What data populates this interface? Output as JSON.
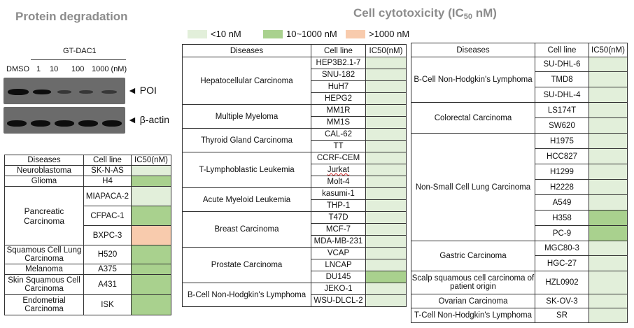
{
  "left_title": "Protein degradation",
  "right_title_main": "Cell cytotoxicity (IC",
  "right_title_sub": "50",
  "right_title_end": " nM)",
  "legend": [
    {
      "label": "<10 nM",
      "color": "#e2efda"
    },
    {
      "label": "10~1000 nM",
      "color": "#a9d18e"
    },
    {
      "label": ">1000 nM",
      "color": "#f8cbad"
    }
  ],
  "western_blot": {
    "drug": "GT-DAC1",
    "lanes": [
      "DMSO",
      "1",
      "10",
      "100",
      "1000 (nM)"
    ],
    "band_labels": [
      "◄ POI",
      "◄ β-actin"
    ]
  },
  "table_headers": {
    "diseases": "Diseases",
    "cell_line": "Cell line",
    "ic50": "IC50(nM)"
  },
  "tables": {
    "small": {
      "groups": [
        {
          "disease": "Neuroblastoma",
          "rows": [
            {
              "cell": "SK-N-AS",
              "level": "<10"
            }
          ]
        },
        {
          "disease": "Glioma",
          "rows": [
            {
              "cell": "H4",
              "level": "10~1000"
            }
          ]
        },
        {
          "disease": "Pancreatic Carcinoma",
          "rows": [
            {
              "cell": "MIAPACA-2",
              "level": "<10"
            },
            {
              "cell": "CFPAC-1",
              "level": "10~1000"
            },
            {
              "cell": "BXPC-3",
              "level": ">1000"
            }
          ]
        },
        {
          "disease": "Squamous Cell Lung Carcinoma",
          "rows": [
            {
              "cell": "H520",
              "level": "10~1000"
            }
          ]
        },
        {
          "disease": "Melanoma",
          "rows": [
            {
              "cell": "A375",
              "level": "10~1000"
            }
          ]
        },
        {
          "disease": "Skin Squamous Cell Carcinoma",
          "rows": [
            {
              "cell": "A431",
              "level": "10~1000"
            }
          ]
        },
        {
          "disease": "Endometrial Carcinoma",
          "rows": [
            {
              "cell": "ISK",
              "level": "10~1000"
            }
          ]
        }
      ]
    },
    "middle": {
      "groups": [
        {
          "disease": "Hepatocellular Carcinoma",
          "rows": [
            {
              "cell": "HEP3B2.1-7",
              "level": "<10"
            },
            {
              "cell": "SNU-182",
              "level": "<10"
            },
            {
              "cell": "HuH7",
              "level": "<10"
            },
            {
              "cell": "HEPG2",
              "level": "<10"
            }
          ]
        },
        {
          "disease": "Multiple Myeloma",
          "rows": [
            {
              "cell": "MM1R",
              "level": "<10"
            },
            {
              "cell": "MM1S",
              "level": "<10"
            }
          ]
        },
        {
          "disease": "Thyroid Gland Carcinoma",
          "rows": [
            {
              "cell": "CAL-62",
              "level": "<10"
            },
            {
              "cell": "TT",
              "level": "<10"
            }
          ]
        },
        {
          "disease": "T-Lymphoblastic Leukemia",
          "rows": [
            {
              "cell": "CCRF-CEM",
              "level": "<10"
            },
            {
              "cell": "Jurkat",
              "level": "<10"
            },
            {
              "cell": "Molt-4",
              "level": "<10"
            }
          ]
        },
        {
          "disease": "Acute Myeloid Leukemia",
          "rows": [
            {
              "cell": "kasumi-1",
              "level": "<10"
            },
            {
              "cell": "THP-1",
              "level": "<10"
            }
          ]
        },
        {
          "disease": "Breast Carcinoma",
          "rows": [
            {
              "cell": "T47D",
              "level": "<10"
            },
            {
              "cell": "MCF-7",
              "level": "<10"
            },
            {
              "cell": "MDA-MB-231",
              "level": "<10"
            }
          ]
        },
        {
          "disease": "Prostate Carcinoma",
          "rows": [
            {
              "cell": "VCAP",
              "level": "<10"
            },
            {
              "cell": "LNCAP",
              "level": "<10"
            },
            {
              "cell": "DU145",
              "level": "10~1000"
            }
          ]
        },
        {
          "disease": "B-Cell Non-Hodgkin's Lymphoma",
          "rows": [
            {
              "cell": "JEKO-1",
              "level": "<10"
            },
            {
              "cell": "WSU-DLCL-2",
              "level": "<10"
            }
          ]
        }
      ]
    },
    "right": {
      "groups": [
        {
          "disease": "B-Cell Non-Hodgkin's Lymphoma",
          "rows": [
            {
              "cell": "SU-DHL-6",
              "level": "<10"
            },
            {
              "cell": "TMD8",
              "level": "<10"
            },
            {
              "cell": "SU-DHL-4",
              "level": "<10"
            }
          ]
        },
        {
          "disease": "Colorectal Carcinoma",
          "rows": [
            {
              "cell": "LS174T",
              "level": "<10"
            },
            {
              "cell": "SW620",
              "level": "<10"
            }
          ]
        },
        {
          "disease": "Non-Small Cell Lung Carcinoma",
          "rows": [
            {
              "cell": "H1975",
              "level": "<10"
            },
            {
              "cell": "HCC827",
              "level": "<10"
            },
            {
              "cell": "H1299",
              "level": "<10"
            },
            {
              "cell": "H2228",
              "level": "<10"
            },
            {
              "cell": "A549",
              "level": "<10"
            },
            {
              "cell": "H358",
              "level": "10~1000"
            },
            {
              "cell": "PC-9",
              "level": "10~1000"
            }
          ]
        },
        {
          "disease": "Gastric Carcinoma",
          "rows": [
            {
              "cell": "MGC80-3",
              "level": "<10"
            },
            {
              "cell": "HGC-27",
              "level": "<10"
            }
          ]
        },
        {
          "disease": "Scalp squamous cell carcinoma of patient origin",
          "rows": [
            {
              "cell": "HZL0902",
              "level": "<10"
            }
          ]
        },
        {
          "disease": "Ovarian Carcinoma",
          "rows": [
            {
              "cell": "SK-OV-3",
              "level": "<10"
            }
          ]
        },
        {
          "disease": "T-Cell Non-Hodgkin's Lymphoma",
          "rows": [
            {
              "cell": "SR",
              "level": "<10"
            }
          ]
        }
      ]
    }
  }
}
